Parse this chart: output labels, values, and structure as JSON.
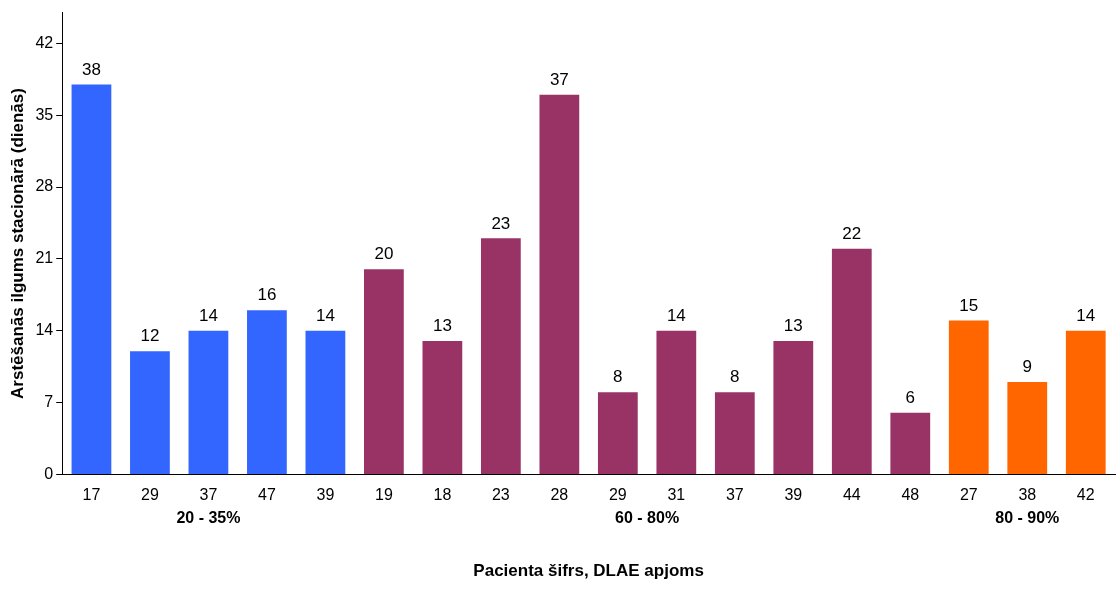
{
  "chart_data": {
    "type": "bar",
    "xlabel": "Pacienta šifrs, DLAE apjoms",
    "ylabel": "Arstēšanās ilgums stacionārā (dienās)",
    "categories": [
      "17",
      "29",
      "37",
      "47",
      "39",
      "19",
      "18",
      "23",
      "28",
      "29",
      "31",
      "37",
      "39",
      "44",
      "48",
      "27",
      "38",
      "42"
    ],
    "values": [
      38,
      12,
      14,
      16,
      14,
      20,
      13,
      23,
      37,
      8,
      14,
      8,
      13,
      22,
      6,
      15,
      9,
      14
    ],
    "colors": [
      "#3366ff",
      "#3366ff",
      "#3366ff",
      "#3366ff",
      "#3366ff",
      "#993366",
      "#993366",
      "#993366",
      "#993366",
      "#993366",
      "#993366",
      "#993366",
      "#993366",
      "#993366",
      "#993366",
      "#ff6600",
      "#ff6600",
      "#ff6600"
    ],
    "ylim": [
      0,
      45
    ],
    "yticks": [
      0,
      7,
      14,
      21,
      28,
      35,
      42
    ],
    "grid": false,
    "legend": false,
    "data_labels": true,
    "annotations": [
      "20 - 35%",
      "60 - 80%",
      "80 - 90%"
    ]
  }
}
